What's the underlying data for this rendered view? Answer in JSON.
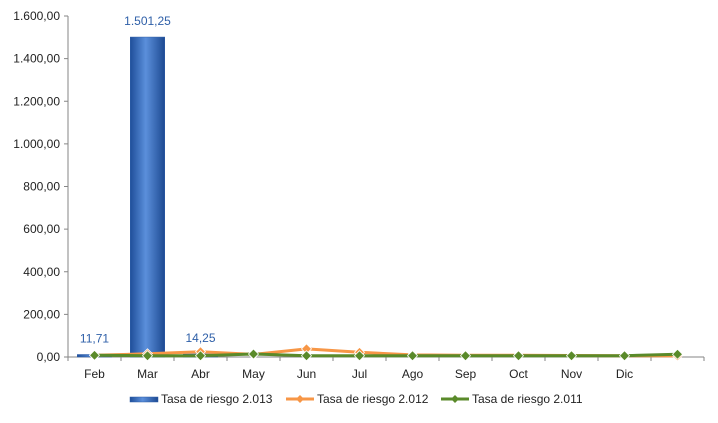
{
  "chart_data": {
    "type": "bar",
    "categories": [
      "Feb",
      "Mar",
      "Abr",
      "May",
      "Jun",
      "Jul",
      "Ago",
      "Sep",
      "Oct",
      "Nov",
      "Dic",
      ""
    ],
    "ylim": [
      0,
      1600
    ],
    "yticks": [
      "0,00",
      "200,00",
      "400,00",
      "600,00",
      "800,00",
      "1.000,00",
      "1.200,00",
      "1.400,00",
      "1.600,00"
    ],
    "grid": false,
    "legend_position": "bottom",
    "series": [
      {
        "name": "Tasa de riesgo 2.013",
        "type": "bar",
        "color": "#3a6fc4",
        "values": [
          11.71,
          1501.25,
          14.25,
          null,
          null,
          null,
          null,
          null,
          null,
          null,
          null,
          null
        ],
        "labels": [
          "11,71",
          "1.501,25",
          "14,25"
        ]
      },
      {
        "name": "Tasa de riesgo 2.012",
        "type": "line",
        "color": "#f79646",
        "values": [
          8,
          15,
          25,
          12,
          38,
          22,
          10,
          8,
          8,
          7,
          6,
          5
        ]
      },
      {
        "name": "Tasa de riesgo 2.011",
        "type": "line",
        "color": "#5a8a2a",
        "values": [
          8,
          6,
          6,
          14,
          6,
          6,
          6,
          6,
          6,
          6,
          6,
          13
        ]
      }
    ]
  }
}
